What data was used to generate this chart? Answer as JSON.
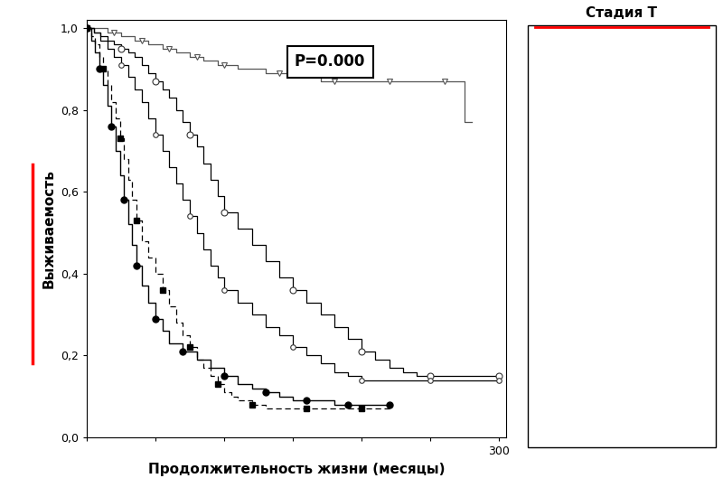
{
  "xlabel": "Продолжительность жизни (месяцы)",
  "ylabel": "Выживаемость",
  "xlim": [
    0,
    305
  ],
  "ylim": [
    0.0,
    1.02
  ],
  "yticks": [
    0.0,
    0.2,
    0.4,
    0.6,
    0.8,
    1.0
  ],
  "ytick_labels": [
    "0,0",
    "0,2",
    "0,4",
    "0,6",
    "0,8",
    "1,0"
  ],
  "xtick_labels": [
    "300"
  ],
  "annotation": "P=0.000",
  "legend_title": "Стадия Т",
  "background_color": "#f5f5f5",
  "T1_x": [
    0,
    5,
    10,
    15,
    20,
    25,
    30,
    35,
    40,
    45,
    50,
    55,
    60,
    65,
    70,
    75,
    80,
    85,
    90,
    95,
    100,
    110,
    120,
    130,
    140,
    150,
    160,
    170,
    180,
    190,
    200,
    210,
    220,
    230,
    240,
    250,
    260,
    270,
    275,
    280
  ],
  "T1_y": [
    1.0,
    1.0,
    1.0,
    0.99,
    0.99,
    0.98,
    0.98,
    0.97,
    0.97,
    0.96,
    0.96,
    0.95,
    0.95,
    0.94,
    0.94,
    0.93,
    0.93,
    0.92,
    0.92,
    0.91,
    0.91,
    0.9,
    0.9,
    0.89,
    0.89,
    0.88,
    0.88,
    0.87,
    0.87,
    0.87,
    0.87,
    0.87,
    0.87,
    0.87,
    0.87,
    0.87,
    0.87,
    0.87,
    0.77,
    0.77
  ],
  "T2_x": [
    0,
    5,
    10,
    15,
    20,
    25,
    30,
    35,
    40,
    45,
    50,
    55,
    60,
    65,
    70,
    75,
    80,
    85,
    90,
    95,
    100,
    110,
    120,
    130,
    140,
    150,
    160,
    170,
    180,
    190,
    200,
    210,
    220,
    230,
    240,
    250,
    260,
    270,
    280,
    290,
    300
  ],
  "T2_y": [
    1.0,
    0.99,
    0.98,
    0.97,
    0.96,
    0.95,
    0.94,
    0.93,
    0.91,
    0.89,
    0.87,
    0.85,
    0.83,
    0.8,
    0.77,
    0.74,
    0.71,
    0.67,
    0.63,
    0.59,
    0.55,
    0.51,
    0.47,
    0.43,
    0.39,
    0.36,
    0.33,
    0.3,
    0.27,
    0.24,
    0.21,
    0.19,
    0.17,
    0.16,
    0.15,
    0.15,
    0.15,
    0.15,
    0.15,
    0.15,
    0.15
  ],
  "T3a_x": [
    0,
    5,
    10,
    15,
    20,
    25,
    30,
    35,
    40,
    45,
    50,
    55,
    60,
    65,
    70,
    75,
    80,
    85,
    90,
    95,
    100,
    110,
    120,
    130,
    140,
    150,
    160,
    170,
    180,
    190,
    200,
    210,
    220,
    230,
    240,
    250,
    260,
    270,
    280,
    290,
    300
  ],
  "T3a_y": [
    1.0,
    0.99,
    0.97,
    0.95,
    0.93,
    0.91,
    0.88,
    0.85,
    0.82,
    0.78,
    0.74,
    0.7,
    0.66,
    0.62,
    0.58,
    0.54,
    0.5,
    0.46,
    0.42,
    0.39,
    0.36,
    0.33,
    0.3,
    0.27,
    0.25,
    0.22,
    0.2,
    0.18,
    0.16,
    0.15,
    0.14,
    0.14,
    0.14,
    0.14,
    0.14,
    0.14,
    0.14,
    0.14,
    0.14,
    0.14,
    0.14
  ],
  "T3bc_x": [
    0,
    3,
    6,
    9,
    12,
    15,
    18,
    21,
    24,
    27,
    30,
    33,
    36,
    40,
    45,
    50,
    55,
    60,
    65,
    70,
    75,
    80,
    85,
    90,
    95,
    100,
    105,
    110,
    120,
    130,
    140,
    150,
    160,
    170,
    180,
    190,
    200,
    210,
    215,
    220
  ],
  "T3bc_y": [
    1.0,
    0.98,
    0.96,
    0.93,
    0.9,
    0.86,
    0.82,
    0.78,
    0.73,
    0.68,
    0.63,
    0.58,
    0.53,
    0.48,
    0.44,
    0.4,
    0.36,
    0.32,
    0.28,
    0.25,
    0.22,
    0.19,
    0.17,
    0.15,
    0.13,
    0.11,
    0.1,
    0.09,
    0.08,
    0.07,
    0.07,
    0.07,
    0.07,
    0.07,
    0.07,
    0.07,
    0.07,
    0.07,
    0.07,
    0.07
  ],
  "T4_x": [
    0,
    3,
    6,
    9,
    12,
    15,
    18,
    21,
    24,
    27,
    30,
    33,
    36,
    40,
    45,
    50,
    55,
    60,
    70,
    80,
    90,
    100,
    110,
    120,
    130,
    140,
    150,
    160,
    170,
    180,
    190,
    200,
    210,
    220
  ],
  "T4_y": [
    1.0,
    0.97,
    0.94,
    0.9,
    0.86,
    0.81,
    0.76,
    0.7,
    0.64,
    0.58,
    0.52,
    0.47,
    0.42,
    0.37,
    0.33,
    0.29,
    0.26,
    0.23,
    0.21,
    0.19,
    0.17,
    0.15,
    0.13,
    0.12,
    0.11,
    0.1,
    0.09,
    0.09,
    0.09,
    0.08,
    0.08,
    0.08,
    0.08,
    0.08
  ]
}
